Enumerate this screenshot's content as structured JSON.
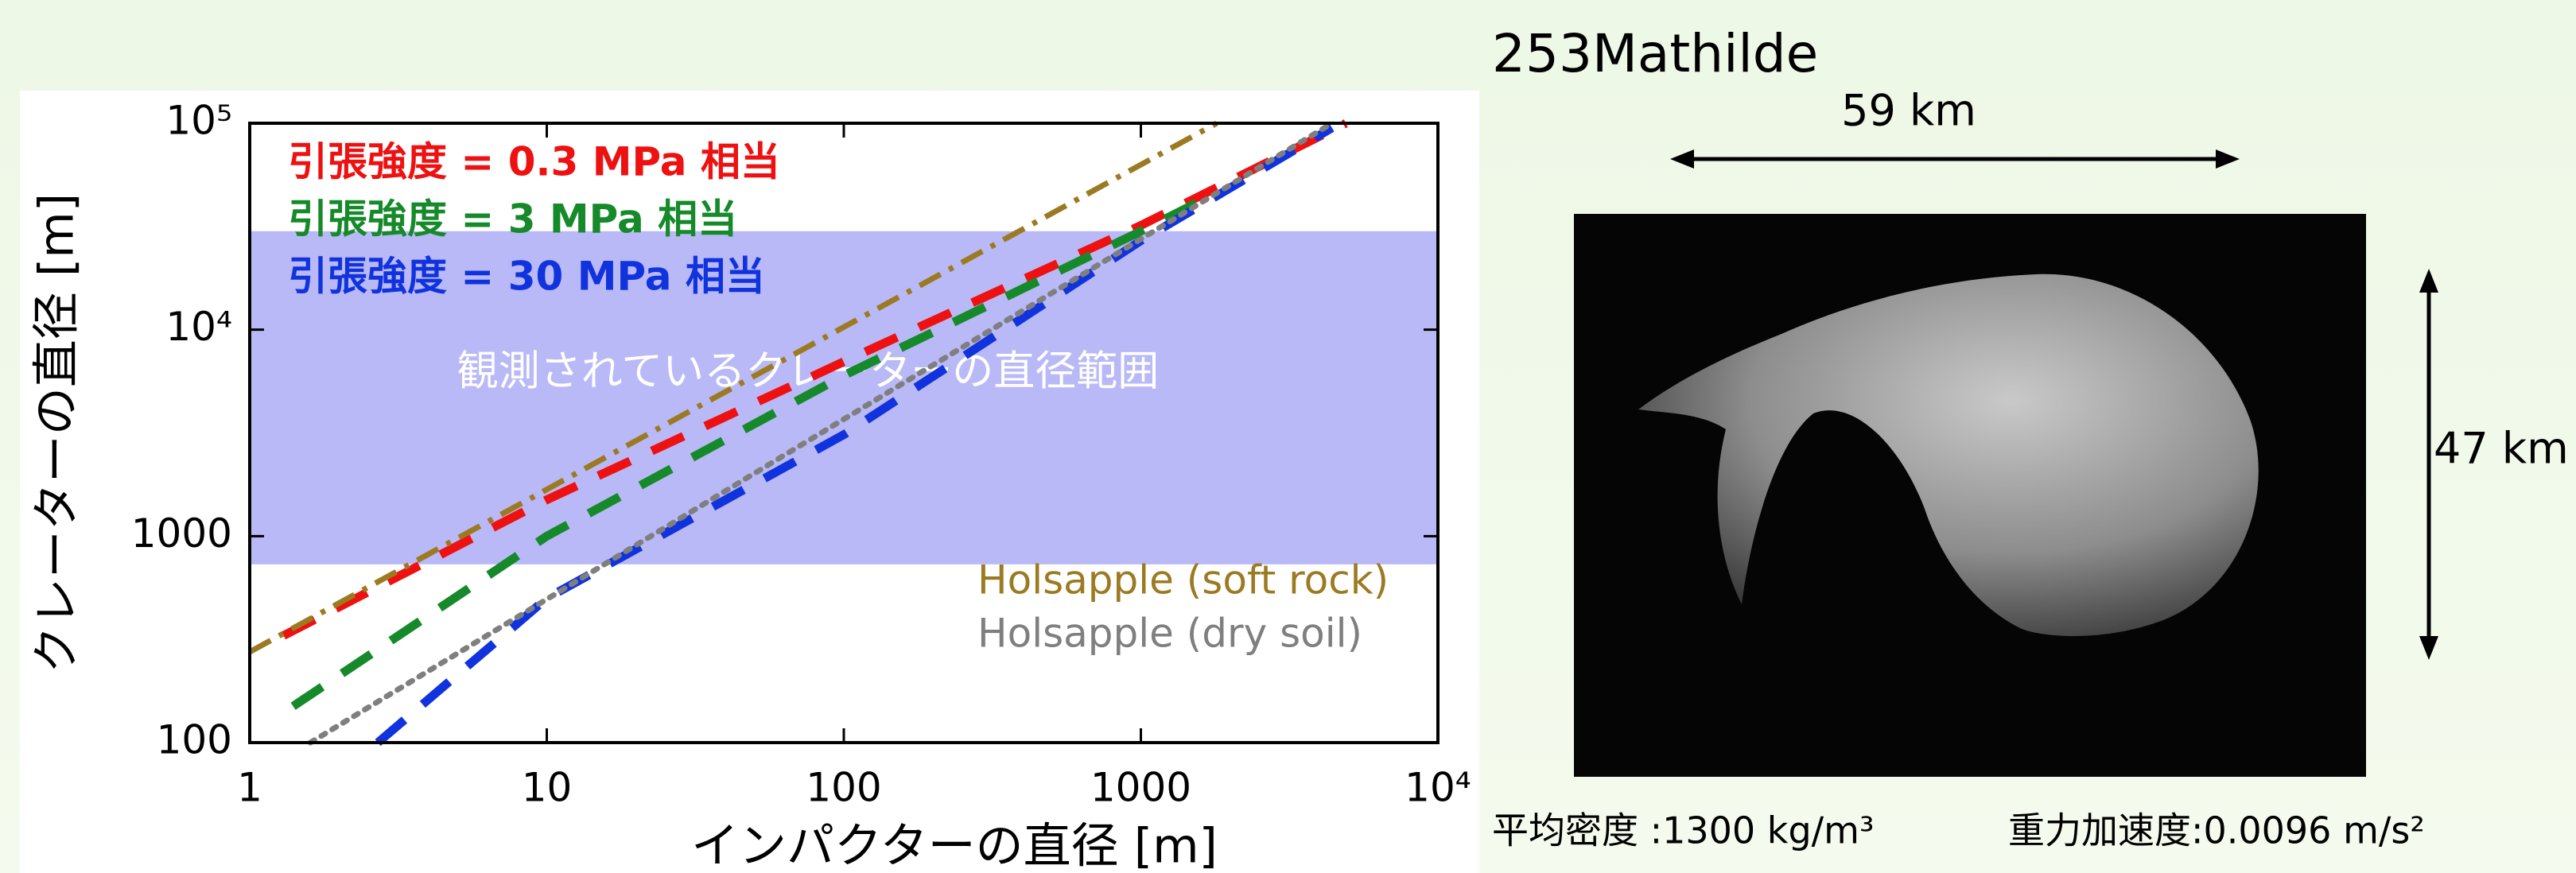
{
  "chart_data": {
    "type": "line",
    "x_label": "インパクターの直径 [m]",
    "y_label": "クレーターの直径 [m]",
    "xscale": "log",
    "yscale": "log",
    "xlim": [
      1,
      10000
    ],
    "ylim": [
      100,
      100000
    ],
    "xticks": [
      1,
      10,
      100,
      1000,
      {
        "value": 10000,
        "label": "10⁴"
      }
    ],
    "yticks": [
      100,
      1000,
      {
        "value": 10000,
        "label": "10⁴"
      },
      {
        "value": 100000,
        "label": "10⁵"
      }
    ],
    "band": {
      "y": [
        730,
        30000
      ],
      "color": "#b9b9f7",
      "label": "観測されているクレーターの直径範囲"
    },
    "series": [
      {
        "name": "引張強度 = 0.3 MPa 相当",
        "color": "#ee1111",
        "linestyle": "dashed",
        "x": [
          1.3,
          10,
          100,
          1000,
          4900
        ],
        "values": [
          330,
          1500,
          7000,
          32000,
          100000
        ]
      },
      {
        "name": "引張強度 =  3   MPa 相当",
        "color": "#168a2a",
        "linestyle": "dashed",
        "x": [
          1.4,
          10,
          100,
          1000,
          1800
        ],
        "values": [
          150,
          1000,
          6000,
          30000,
          46000
        ]
      },
      {
        "name": "引張強度 = 30  MPa 相当",
        "color": "#1133dd",
        "linestyle": "dashed",
        "x": [
          2.7,
          10,
          100,
          1000,
          4400
        ],
        "values": [
          100,
          500,
          3100,
          27000,
          95000
        ]
      },
      {
        "name": "Holsapple (soft rock)",
        "color": "#9c7a22",
        "linestyle": "dashdot",
        "x": [
          1,
          1800
        ],
        "values": [
          275,
          100000
        ]
      },
      {
        "name": "Holsapple (dry soil)",
        "color": "#7f7f7f",
        "linestyle": "dotted",
        "x": [
          1.6,
          4400
        ],
        "values": [
          100,
          100000
        ]
      }
    ]
  },
  "image_panel": {
    "title": "253Mathilde",
    "width_label": "59 km",
    "height_label": "47 km",
    "footer": [
      "平均密度 :1300 kg/m³",
      "重力加速度:0.0096 m/s²"
    ]
  }
}
